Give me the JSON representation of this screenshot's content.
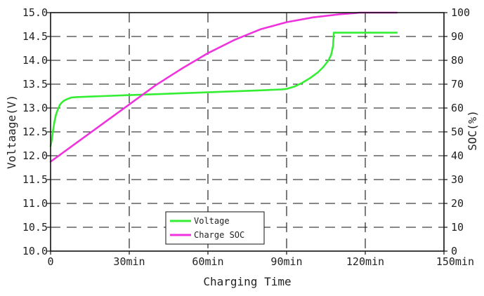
{
  "chart_data": {
    "type": "line",
    "title": "",
    "xlabel": "Charging Time",
    "ylabel_left": "Voltaage(V)",
    "ylabel_right": "SOC(%)",
    "xlim": [
      0,
      150
    ],
    "ylim_left": [
      10.0,
      15.0
    ],
    "ylim_right": [
      0,
      100
    ],
    "x_ticks": [
      {
        "value": 0,
        "label": "0"
      },
      {
        "value": 30,
        "label": "30min"
      },
      {
        "value": 60,
        "label": "60min"
      },
      {
        "value": 90,
        "label": "90min"
      },
      {
        "value": 120,
        "label": "120min"
      },
      {
        "value": 150,
        "label": "150min"
      }
    ],
    "y_left_ticks": [
      {
        "value": 10.0,
        "label": "10.0"
      },
      {
        "value": 10.5,
        "label": "10.5"
      },
      {
        "value": 11.0,
        "label": "11.0"
      },
      {
        "value": 11.5,
        "label": "11.5"
      },
      {
        "value": 12.0,
        "label": "12.0"
      },
      {
        "value": 12.5,
        "label": "12.5"
      },
      {
        "value": 13.0,
        "label": "13.0"
      },
      {
        "value": 13.5,
        "label": "13.5"
      },
      {
        "value": 14.0,
        "label": "14.0"
      },
      {
        "value": 14.5,
        "label": "14.5"
      },
      {
        "value": 15.0,
        "label": "15.0"
      }
    ],
    "y_right_ticks": [
      {
        "value": 0,
        "label": "0"
      },
      {
        "value": 10,
        "label": "10"
      },
      {
        "value": 20,
        "label": "20"
      },
      {
        "value": 30,
        "label": "30"
      },
      {
        "value": 40,
        "label": "40"
      },
      {
        "value": 50,
        "label": "50"
      },
      {
        "value": 60,
        "label": "60"
      },
      {
        "value": 70,
        "label": "70"
      },
      {
        "value": 80,
        "label": "80"
      },
      {
        "value": 90,
        "label": "90"
      },
      {
        "value": 100,
        "label": "100"
      }
    ],
    "grid": "dashed",
    "legend_position": "bottom-center",
    "series": [
      {
        "name": "Voltage",
        "axis": "left",
        "color": "#33ee33",
        "points": [
          [
            0,
            12.2
          ],
          [
            0.5,
            12.35
          ],
          [
            1,
            12.55
          ],
          [
            1.5,
            12.72
          ],
          [
            2,
            12.85
          ],
          [
            2.5,
            12.93
          ],
          [
            3,
            13.0
          ],
          [
            3.5,
            13.06
          ],
          [
            4,
            13.1
          ],
          [
            5,
            13.15
          ],
          [
            6,
            13.18
          ],
          [
            7,
            13.2
          ],
          [
            8,
            13.22
          ],
          [
            10,
            13.23
          ],
          [
            20,
            13.25
          ],
          [
            30,
            13.27
          ],
          [
            40,
            13.29
          ],
          [
            50,
            13.31
          ],
          [
            60,
            13.33
          ],
          [
            70,
            13.35
          ],
          [
            80,
            13.37
          ],
          [
            88,
            13.39
          ],
          [
            90,
            13.4
          ],
          [
            93,
            13.45
          ],
          [
            96,
            13.53
          ],
          [
            99,
            13.63
          ],
          [
            102,
            13.75
          ],
          [
            104,
            13.86
          ],
          [
            106,
            14.0
          ],
          [
            107,
            14.12
          ],
          [
            107.7,
            14.3
          ],
          [
            108,
            14.58
          ],
          [
            115,
            14.58
          ],
          [
            125,
            14.58
          ],
          [
            132,
            14.58
          ]
        ]
      },
      {
        "name": "Charge SOC",
        "axis": "right",
        "color": "#ee33dd",
        "points": [
          [
            0,
            37.5
          ],
          [
            10,
            45.5
          ],
          [
            20,
            53.5
          ],
          [
            30,
            61.5
          ],
          [
            40,
            69.5
          ],
          [
            50,
            76.5
          ],
          [
            60,
            83.0
          ],
          [
            70,
            88.5
          ],
          [
            80,
            93.0
          ],
          [
            90,
            96.0
          ],
          [
            100,
            98.0
          ],
          [
            110,
            99.3
          ],
          [
            118,
            100
          ],
          [
            125,
            100
          ],
          [
            132,
            100
          ]
        ]
      }
    ]
  }
}
